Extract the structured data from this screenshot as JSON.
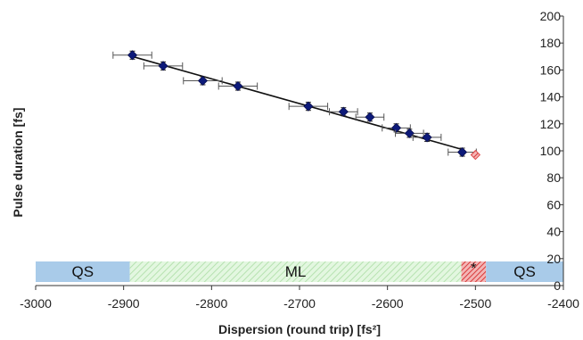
{
  "chart_data": {
    "type": "scatter",
    "title": "",
    "xlabel": "Dispersion (round trip) [fs²]",
    "ylabel": "Pulse duration [fs]",
    "xlim": [
      -3000,
      -2400
    ],
    "ylim": [
      0,
      200
    ],
    "x_ticks": [
      -3000,
      -2900,
      -2800,
      -2700,
      -2600,
      -2500,
      -2400
    ],
    "y_ticks": [
      0,
      20,
      40,
      60,
      80,
      100,
      120,
      140,
      160,
      180,
      200
    ],
    "y_axis_side": "right",
    "grid": false,
    "series": [
      {
        "marker": "diamond",
        "color": "#0d1a7a",
        "points": [
          {
            "x": -2890,
            "y": 171,
            "xerr": 22,
            "yerr": 3
          },
          {
            "x": -2855,
            "y": 163,
            "xerr": 22,
            "yerr": 3
          },
          {
            "x": -2810,
            "y": 152,
            "xerr": 22,
            "yerr": 3
          },
          {
            "x": -2770,
            "y": 148,
            "xerr": 22,
            "yerr": 3
          },
          {
            "x": -2690,
            "y": 133,
            "xerr": 22,
            "yerr": 3
          },
          {
            "x": -2650,
            "y": 129,
            "xerr": 16,
            "yerr": 3
          },
          {
            "x": -2620,
            "y": 125,
            "xerr": 16,
            "yerr": 3
          },
          {
            "x": -2590,
            "y": 117,
            "xerr": 16,
            "yerr": 3
          },
          {
            "x": -2575,
            "y": 113,
            "xerr": 16,
            "yerr": 3
          },
          {
            "x": -2555,
            "y": 110,
            "xerr": 16,
            "yerr": 3
          },
          {
            "x": -2515,
            "y": 99,
            "xerr": 16,
            "yerr": 3
          }
        ]
      },
      {
        "marker": "diamond-hatched",
        "color": "#e05050",
        "points": [
          {
            "x": -2500,
            "y": 97
          }
        ]
      }
    ],
    "fit_line": {
      "x": [
        -2890,
        -2515
      ],
      "y": [
        170,
        101
      ],
      "color": "#111111"
    },
    "regions": [
      {
        "label": "QS",
        "x_start": -3000,
        "x_end": -2893,
        "color": "#a9cbe9",
        "pattern": "solid"
      },
      {
        "label": "ML",
        "x_start": -2893,
        "x_end": -2516,
        "color": "#d3f2cf",
        "pattern": "hatched"
      },
      {
        "label": "*",
        "x_start": -2516,
        "x_end": -2488,
        "color": "#e04848",
        "pattern": "hatched"
      },
      {
        "label": "QS",
        "x_start": -2488,
        "x_end": -2400,
        "color": "#a9cbe9",
        "pattern": "solid"
      }
    ]
  }
}
